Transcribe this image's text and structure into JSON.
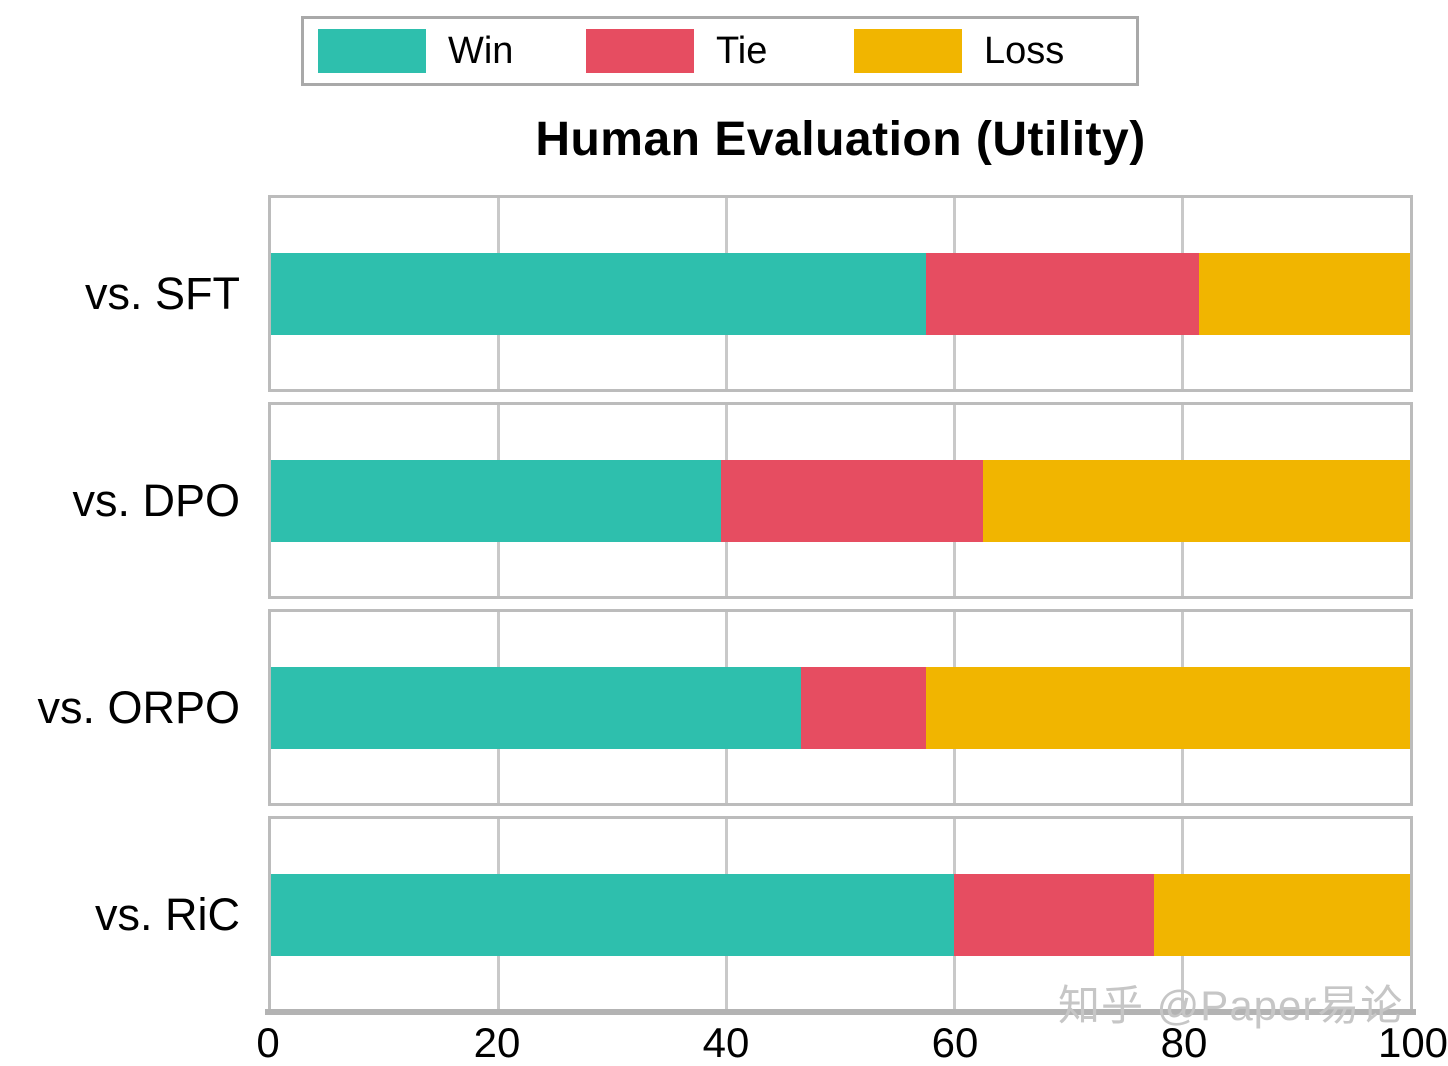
{
  "title": "Human Evaluation (Utility)",
  "watermark": "知乎 @Paper易论",
  "legend": {
    "items": [
      {
        "label": "Win",
        "color": "#2EBFAD"
      },
      {
        "label": "Tie",
        "color": "#E64D61"
      },
      {
        "label": "Loss",
        "color": "#F1B500"
      }
    ]
  },
  "colors": {
    "win": "#2EBFAD",
    "tie": "#E64D61",
    "loss": "#F1B500",
    "grid": "#C9C9C9",
    "facet_border": "#BCBCBC",
    "axis_line": "#B3B3B3",
    "legend_border": "#A9A9A9",
    "watermark_text": "#C6C6C6"
  },
  "chart_data": {
    "type": "bar",
    "orientation": "horizontal",
    "stacked": true,
    "title": "Human Evaluation (Utility)",
    "categories": [
      "vs. SFT",
      "vs. DPO",
      "vs. ORPO",
      "vs. RiC"
    ],
    "series": [
      {
        "name": "Win",
        "color": "#2EBFAD",
        "values": [
          57.5,
          39.5,
          46.5,
          60.0
        ]
      },
      {
        "name": "Tie",
        "color": "#E64D61",
        "values": [
          24.0,
          23.0,
          11.0,
          17.5
        ]
      },
      {
        "name": "Loss",
        "color": "#F1B500",
        "values": [
          18.5,
          37.5,
          42.5,
          22.5
        ]
      }
    ],
    "xlabel": "",
    "ylabel": "",
    "xlim": [
      0,
      100
    ],
    "xticks": [
      0,
      20,
      40,
      60,
      80,
      100
    ],
    "grid": true,
    "legend_position": "top-center"
  }
}
